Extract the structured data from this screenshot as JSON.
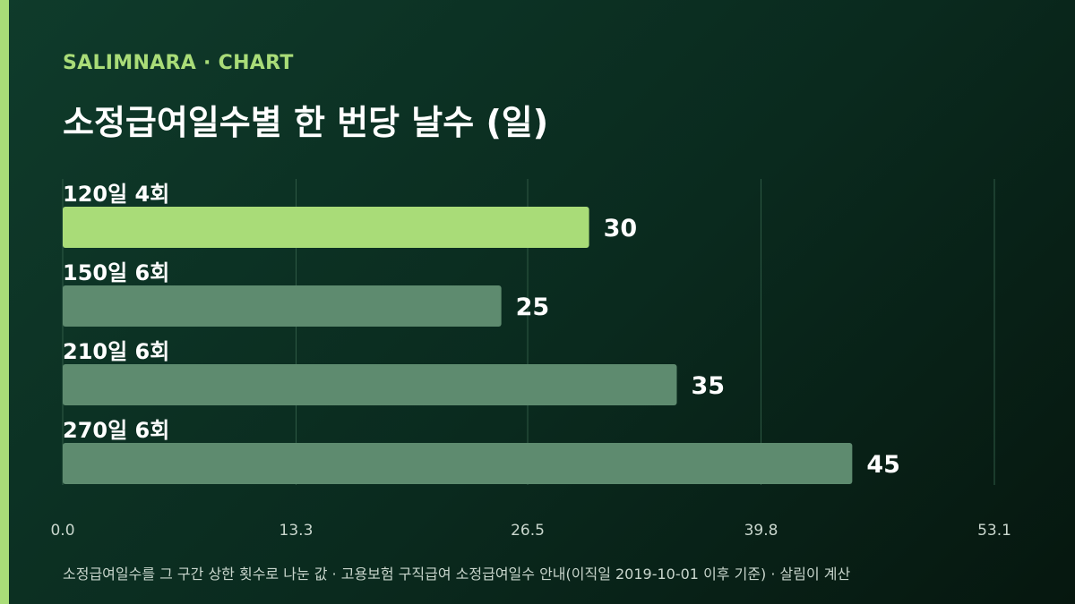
{
  "brand": {
    "text": "SALIMNARA · CHART",
    "color": "#a9dc78"
  },
  "title": "소정급여일수별 한 번당 날수 (일)",
  "footnote": "소정급여일수를 그 구간 상한 횟수로 나눈 값 · 고용보험 구직급여 소정급여일수 안내(이직일 2019-10-01 이후 기준) · 살림이 계산",
  "colors": {
    "accent": "#a9dc78",
    "highlight_bar": "#a9dc78",
    "bar": "#5e8b6f",
    "grid": "#2f5a45",
    "tick_text": "#c9d6cd"
  },
  "chart_data": {
    "type": "bar",
    "orientation": "horizontal",
    "categories": [
      "120일 4회",
      "150일 6회",
      "210일 6회",
      "270일 6회"
    ],
    "values": [
      30,
      25,
      35,
      45
    ],
    "highlight_index": 0,
    "xlim": [
      0,
      53.1
    ],
    "x_ticks": [
      "0.0",
      "13.3",
      "26.5",
      "39.8",
      "53.1"
    ],
    "grid": true
  }
}
